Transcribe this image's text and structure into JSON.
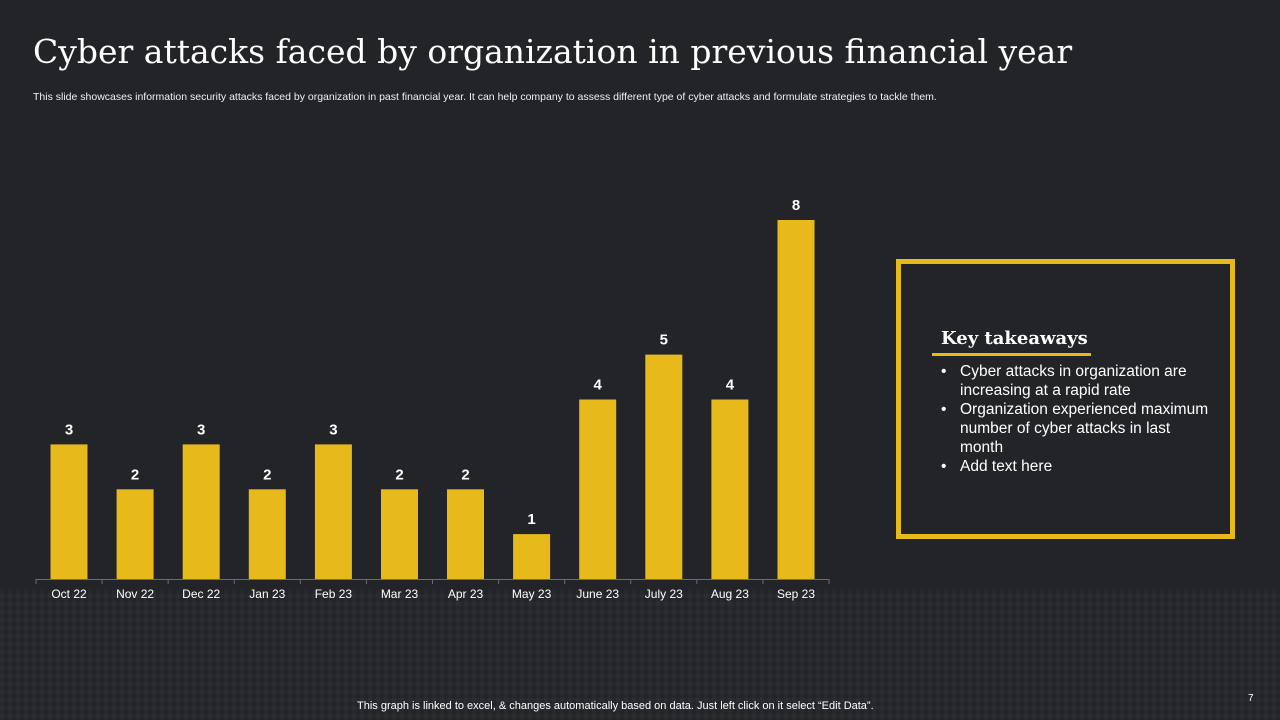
{
  "title": "Cyber attacks faced by organization in previous financial year",
  "subtitle": "This slide showcases information security attacks faced by organization in past financial year. It can help company to assess different type of cyber attacks and formulate strategies to tackle them.",
  "chart_data": {
    "type": "bar",
    "title": "",
    "xlabel": "",
    "ylabel": "",
    "categories": [
      "Oct 22",
      "Nov 22",
      "Dec 22",
      "Jan 23",
      "Feb 23",
      "Mar 23",
      "Apr 23",
      "May 23",
      "June 23",
      "July 23",
      "Aug 23",
      "Sep 23"
    ],
    "values": [
      3,
      2,
      3,
      2,
      3,
      2,
      2,
      1,
      4,
      5,
      4,
      8
    ],
    "ylim": [
      0,
      8
    ],
    "grid": false,
    "data_labels": true,
    "bar_color": "#e8b91a"
  },
  "takeaways": {
    "title": "Key takeaways",
    "items": [
      "Cyber attacks in organization are increasing at a rapid rate",
      "Organization experienced maximum number of cyber attacks in last month",
      "Add text here"
    ]
  },
  "footer_note": "This graph is linked to excel, & changes automatically based on data. Just left click on it select “Edit Data”.",
  "page_number": "7",
  "colors": {
    "background": "#222428",
    "accent": "#e8b91a",
    "text": "#ffffff"
  }
}
